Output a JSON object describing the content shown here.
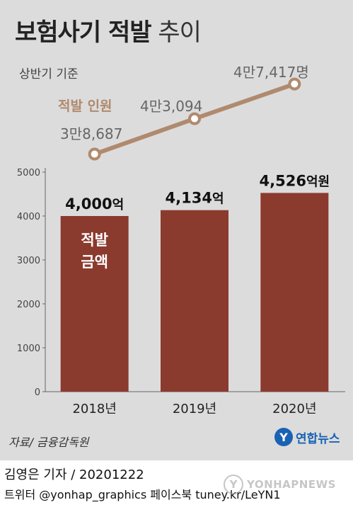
{
  "header": {
    "title_bold": "보험사기 적발",
    "title_light": " 추이",
    "subtitle": "상반기 기준"
  },
  "chart_data": {
    "type": "bar",
    "categories": [
      "2018년",
      "2019년",
      "2020년"
    ],
    "ylim": [
      0,
      5000
    ],
    "yticks": [
      0,
      1000,
      2000,
      3000,
      4000,
      5000
    ],
    "series": [
      {
        "name": "적발 금액",
        "label_lines": [
          "적발",
          "금액"
        ],
        "values": [
          4000,
          4134,
          4526
        ],
        "value_labels": [
          {
            "number": "4,000",
            "unit": "억"
          },
          {
            "number": "4,134",
            "unit": "억"
          },
          {
            "number": "4,526",
            "unit": "억원"
          }
        ],
        "color": "#8b3a2e"
      },
      {
        "name": "적발 인원",
        "values": [
          38687,
          43094,
          47417
        ],
        "value_labels": [
          {
            "number": "3만8,687",
            "unit": ""
          },
          {
            "number": "4만3,094",
            "unit": ""
          },
          {
            "number": "4만7,417",
            "unit": "명"
          }
        ],
        "color": "#b08a6e"
      }
    ]
  },
  "footer": {
    "source": "자료/ 금융감독원",
    "logo_mark": "Y",
    "logo_text": "연합뉴스",
    "byline": "김영은 기자 / 20201222",
    "credit": "트위터 @yonhap_graphics  페이스북 tuney.kr/LeYN1",
    "watermark": "YONHAPNEWS"
  }
}
